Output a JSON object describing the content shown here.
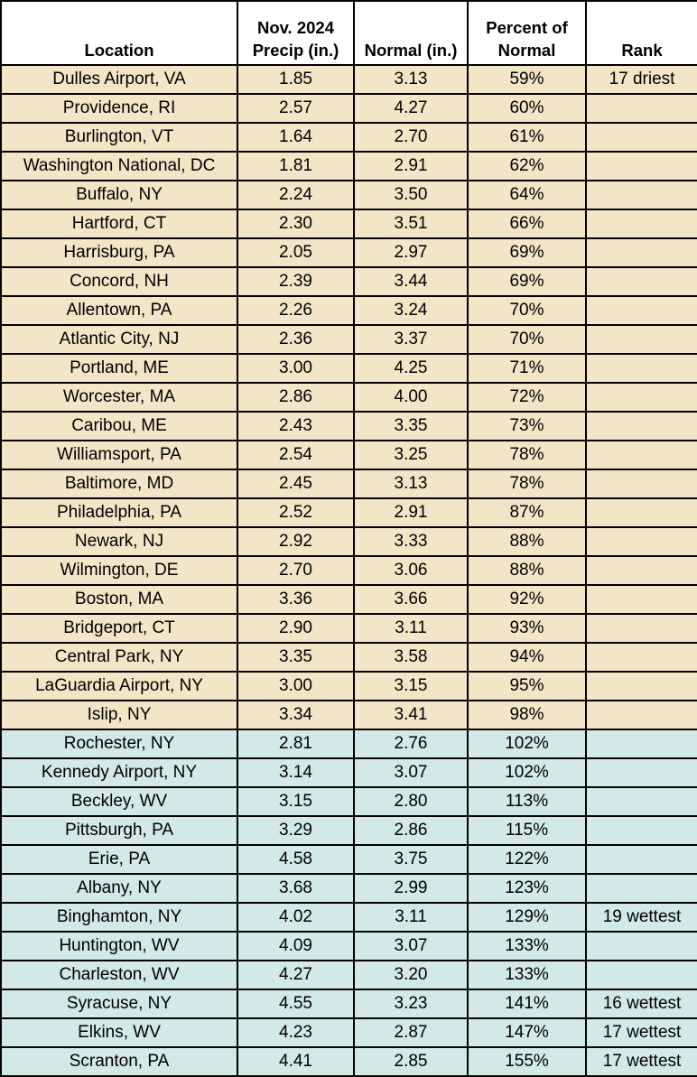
{
  "chart_data": {
    "type": "table",
    "columns": [
      "Location",
      "Nov. 2024 Precip (in.)",
      "Normal (in.)",
      "Percent of Normal",
      "Rank"
    ],
    "header_lines": [
      [
        "Location"
      ],
      [
        "Nov. 2024",
        "Precip (in.)"
      ],
      [
        "Normal (in.)"
      ],
      [
        "Percent of",
        "Normal"
      ],
      [
        "Rank"
      ]
    ],
    "colors": {
      "below_normal": "#f2e6c6",
      "above_normal": "#d2e9e5"
    },
    "rows": [
      [
        "Dulles Airport, VA",
        "1.85",
        "3.13",
        "59%",
        "17 driest"
      ],
      [
        "Providence, RI",
        "2.57",
        "4.27",
        "60%",
        ""
      ],
      [
        "Burlington, VT",
        "1.64",
        "2.70",
        "61%",
        ""
      ],
      [
        "Washington National, DC",
        "1.81",
        "2.91",
        "62%",
        ""
      ],
      [
        "Buffalo, NY",
        "2.24",
        "3.50",
        "64%",
        ""
      ],
      [
        "Hartford, CT",
        "2.30",
        "3.51",
        "66%",
        ""
      ],
      [
        "Harrisburg, PA",
        "2.05",
        "2.97",
        "69%",
        ""
      ],
      [
        "Concord, NH",
        "2.39",
        "3.44",
        "69%",
        ""
      ],
      [
        "Allentown, PA",
        "2.26",
        "3.24",
        "70%",
        ""
      ],
      [
        "Atlantic City, NJ",
        "2.36",
        "3.37",
        "70%",
        ""
      ],
      [
        "Portland, ME",
        "3.00",
        "4.25",
        "71%",
        ""
      ],
      [
        "Worcester, MA",
        "2.86",
        "4.00",
        "72%",
        ""
      ],
      [
        "Caribou, ME",
        "2.43",
        "3.35",
        "73%",
        ""
      ],
      [
        "Williamsport, PA",
        "2.54",
        "3.25",
        "78%",
        ""
      ],
      [
        "Baltimore, MD",
        "2.45",
        "3.13",
        "78%",
        ""
      ],
      [
        "Philadelphia, PA",
        "2.52",
        "2.91",
        "87%",
        ""
      ],
      [
        "Newark, NJ",
        "2.92",
        "3.33",
        "88%",
        ""
      ],
      [
        "Wilmington, DE",
        "2.70",
        "3.06",
        "88%",
        ""
      ],
      [
        "Boston, MA",
        "3.36",
        "3.66",
        "92%",
        ""
      ],
      [
        "Bridgeport, CT",
        "2.90",
        "3.11",
        "93%",
        ""
      ],
      [
        "Central Park, NY",
        "3.35",
        "3.58",
        "94%",
        ""
      ],
      [
        "LaGuardia Airport, NY",
        "3.00",
        "3.15",
        "95%",
        ""
      ],
      [
        "Islip, NY",
        "3.34",
        "3.41",
        "98%",
        ""
      ],
      [
        "Rochester, NY",
        "2.81",
        "2.76",
        "102%",
        ""
      ],
      [
        "Kennedy Airport, NY",
        "3.14",
        "3.07",
        "102%",
        ""
      ],
      [
        "Beckley, WV",
        "3.15",
        "2.80",
        "113%",
        ""
      ],
      [
        "Pittsburgh, PA",
        "3.29",
        "2.86",
        "115%",
        ""
      ],
      [
        "Erie, PA",
        "4.58",
        "3.75",
        "122%",
        ""
      ],
      [
        "Albany, NY",
        "3.68",
        "2.99",
        "123%",
        ""
      ],
      [
        "Binghamton, NY",
        "4.02",
        "3.11",
        "129%",
        "19 wettest"
      ],
      [
        "Huntington, WV",
        "4.09",
        "3.07",
        "133%",
        ""
      ],
      [
        "Charleston, WV",
        "4.27",
        "3.20",
        "133%",
        ""
      ],
      [
        "Syracuse, NY",
        "4.55",
        "3.23",
        "141%",
        "16 wettest"
      ],
      [
        "Elkins, WV",
        "4.23",
        "2.87",
        "147%",
        "17 wettest"
      ],
      [
        "Scranton, PA",
        "4.41",
        "2.85",
        "155%",
        "17 wettest"
      ]
    ]
  }
}
